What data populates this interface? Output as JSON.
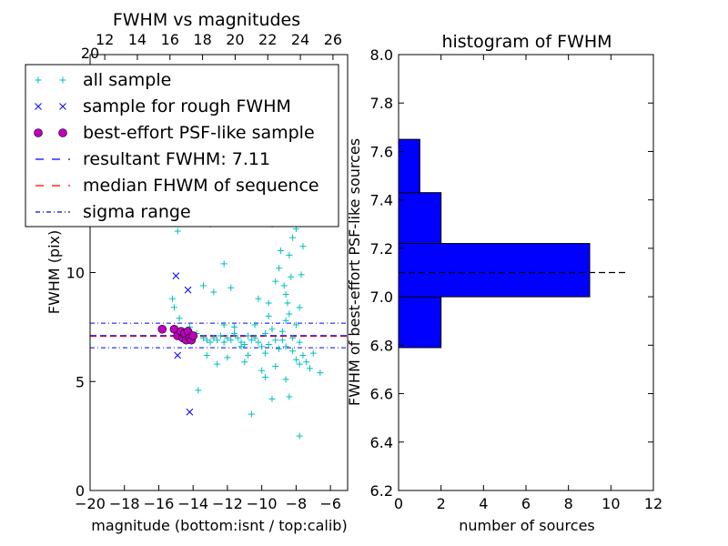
{
  "chart_data": [
    {
      "type": "scatter",
      "title": "FWHM vs magnitudes",
      "xlabel": "magnitude (bottom:isnt / top:calib)",
      "ylabel": "FWHM (pix)",
      "xlim": [
        -20,
        -5
      ],
      "ylim": [
        0,
        20
      ],
      "top_xlim": [
        11.1,
        26.9
      ],
      "x_ticks": [
        "−20",
        "−18",
        "−16",
        "−14",
        "−12",
        "−10",
        "−8",
        "−6"
      ],
      "y_ticks": [
        "0",
        "5",
        "10"
      ],
      "top_ticks": [
        "12",
        "14",
        "16",
        "18",
        "20",
        "22",
        "24",
        "26"
      ],
      "top_left_tick": "20",
      "grid": false,
      "legend_placement": "upper-left",
      "legend": [
        {
          "label": "all sample",
          "marker": "+",
          "color": "#00bfbf"
        },
        {
          "label": "sample for rough FWHM",
          "marker": "x",
          "color": "#0000ff"
        },
        {
          "label": "best-effort PSF-like sample",
          "marker": "o",
          "color": "#bf00bf"
        },
        {
          "label": "resultant FWHM: 7.11",
          "line": "dashed",
          "color": "#0000ff"
        },
        {
          "label": "median FHWM of sequence",
          "line": "dashed",
          "color": "#ff0000"
        },
        {
          "label": "sigma range",
          "line": "dashdot",
          "color": "#0000ff"
        }
      ],
      "resultant_fwhm": 7.11,
      "median_fwhm": 7.08,
      "sigma_range": [
        6.55,
        7.68
      ],
      "series": [
        {
          "marker": "+",
          "color": "#00bfbf",
          "points": [
            [
              -14.9,
              11.9
            ],
            [
              -15.2,
              8.8
            ],
            [
              -15.1,
              8.4
            ],
            [
              -14.8,
              7.9
            ],
            [
              -14.2,
              7.5
            ],
            [
              -13.8,
              7.2
            ],
            [
              -13.4,
              7.0
            ],
            [
              -13.2,
              6.9
            ],
            [
              -13.0,
              6.8
            ],
            [
              -12.8,
              7.0
            ],
            [
              -12.6,
              6.9
            ],
            [
              -12.4,
              7.1
            ],
            [
              -12.2,
              6.8
            ],
            [
              -12.0,
              7.0
            ],
            [
              -11.8,
              6.9
            ],
            [
              -11.6,
              7.2
            ],
            [
              -11.4,
              7.0
            ],
            [
              -11.2,
              6.8
            ],
            [
              -11.0,
              6.7
            ],
            [
              -10.8,
              7.1
            ],
            [
              -10.6,
              6.9
            ],
            [
              -10.4,
              7.0
            ],
            [
              -10.2,
              6.8
            ],
            [
              -10.0,
              6.6
            ],
            [
              -9.8,
              7.2
            ],
            [
              -9.6,
              6.7
            ],
            [
              -9.4,
              7.4
            ],
            [
              -9.2,
              6.9
            ],
            [
              -9.0,
              6.5
            ],
            [
              -8.8,
              7.3
            ],
            [
              -8.6,
              7.8
            ],
            [
              -8.4,
              8.1
            ],
            [
              -8.2,
              6.4
            ],
            [
              -8.0,
              6.0
            ],
            [
              -7.8,
              5.8
            ],
            [
              -7.6,
              6.2
            ],
            [
              -7.4,
              5.9
            ],
            [
              -7.2,
              5.6
            ],
            [
              -7.0,
              6.3
            ],
            [
              -6.6,
              5.4
            ],
            [
              -13.4,
              9.4
            ],
            [
              -12.8,
              9.1
            ],
            [
              -11.8,
              9.3
            ],
            [
              -12.2,
              10.4
            ],
            [
              -10.2,
              8.8
            ],
            [
              -9.6,
              8.6
            ],
            [
              -9.2,
              9.6
            ],
            [
              -9.0,
              10.2
            ],
            [
              -8.6,
              9.0
            ],
            [
              -8.4,
              10.8
            ],
            [
              -8.2,
              11.6
            ],
            [
              -8.0,
              12.0
            ],
            [
              -7.8,
              8.4
            ],
            [
              -8.8,
              12.4
            ],
            [
              -9.4,
              12.2
            ],
            [
              -7.6,
              11.2
            ],
            [
              -9.6,
              8.0
            ],
            [
              -8.5,
              8.6
            ],
            [
              -8.9,
              11.0
            ],
            [
              -8.3,
              9.8
            ],
            [
              -13.7,
              4.6
            ],
            [
              -10.6,
              3.5
            ],
            [
              -9.8,
              5.2
            ],
            [
              -9.4,
              4.2
            ],
            [
              -8.4,
              4.3
            ],
            [
              -7.8,
              2.5
            ],
            [
              -12.0,
              6.1
            ],
            [
              -11.0,
              5.9
            ],
            [
              -10.0,
              5.5
            ],
            [
              -9.2,
              5.7
            ],
            [
              -8.6,
              5.1
            ],
            [
              -12.6,
              5.8
            ],
            [
              -13.2,
              6.2
            ],
            [
              -10.4,
              7.6
            ],
            [
              -11.6,
              7.5
            ],
            [
              -12.2,
              7.6
            ],
            [
              -8.0,
              7.6
            ],
            [
              -8.2,
              7.0
            ],
            [
              -7.8,
              6.8
            ],
            [
              -8.6,
              6.6
            ],
            [
              -8.8,
              6.9
            ],
            [
              -9.8,
              6.3
            ],
            [
              -10.8,
              6.2
            ],
            [
              -11.2,
              6.6
            ],
            [
              -8.1,
              12.8
            ],
            [
              -8.7,
              9.4
            ],
            [
              -7.7,
              9.9
            ],
            [
              -13.0,
              12.2
            ]
          ]
        },
        {
          "marker": "x",
          "color": "#0000ff",
          "points": [
            [
              -15.0,
              9.85
            ],
            [
              -14.3,
              9.2
            ],
            [
              -14.9,
              6.2
            ],
            [
              -14.2,
              3.6
            ]
          ]
        },
        {
          "marker": "o",
          "color": "#bf00bf",
          "points": [
            [
              -15.8,
              7.4
            ],
            [
              -15.1,
              7.4
            ],
            [
              -14.9,
              7.1
            ],
            [
              -14.7,
              7.3
            ],
            [
              -14.6,
              7.0
            ],
            [
              -14.5,
              7.2
            ],
            [
              -14.4,
              6.9
            ],
            [
              -14.3,
              7.3
            ],
            [
              -14.2,
              7.0
            ],
            [
              -14.1,
              6.9
            ],
            [
              -14.0,
              7.1
            ]
          ]
        }
      ]
    },
    {
      "type": "bar",
      "orientation": "horizontal",
      "title": "histogram of FWHM",
      "xlabel": "number of sources",
      "ylabel": "FWHM of best-effort PSF-like sources",
      "xlim": [
        0,
        12
      ],
      "ylim": [
        6.2,
        8.0
      ],
      "x_ticks": [
        "0",
        "2",
        "4",
        "6",
        "8",
        "10",
        "12"
      ],
      "y_ticks": [
        "6.2",
        "6.4",
        "6.6",
        "6.8",
        "7.0",
        "7.2",
        "7.4",
        "7.6",
        "7.8",
        "8.0"
      ],
      "color": "#0000ff",
      "bins": [
        {
          "from": 6.79,
          "to": 7.0,
          "count": 2
        },
        {
          "from": 7.0,
          "to": 7.22,
          "count": 9
        },
        {
          "from": 7.22,
          "to": 7.43,
          "count": 2
        },
        {
          "from": 7.43,
          "to": 7.65,
          "count": 1
        }
      ],
      "reference_line": {
        "y": 7.1,
        "from": 0,
        "to": 10.8,
        "style": "dashed",
        "color": "#000000"
      }
    }
  ]
}
